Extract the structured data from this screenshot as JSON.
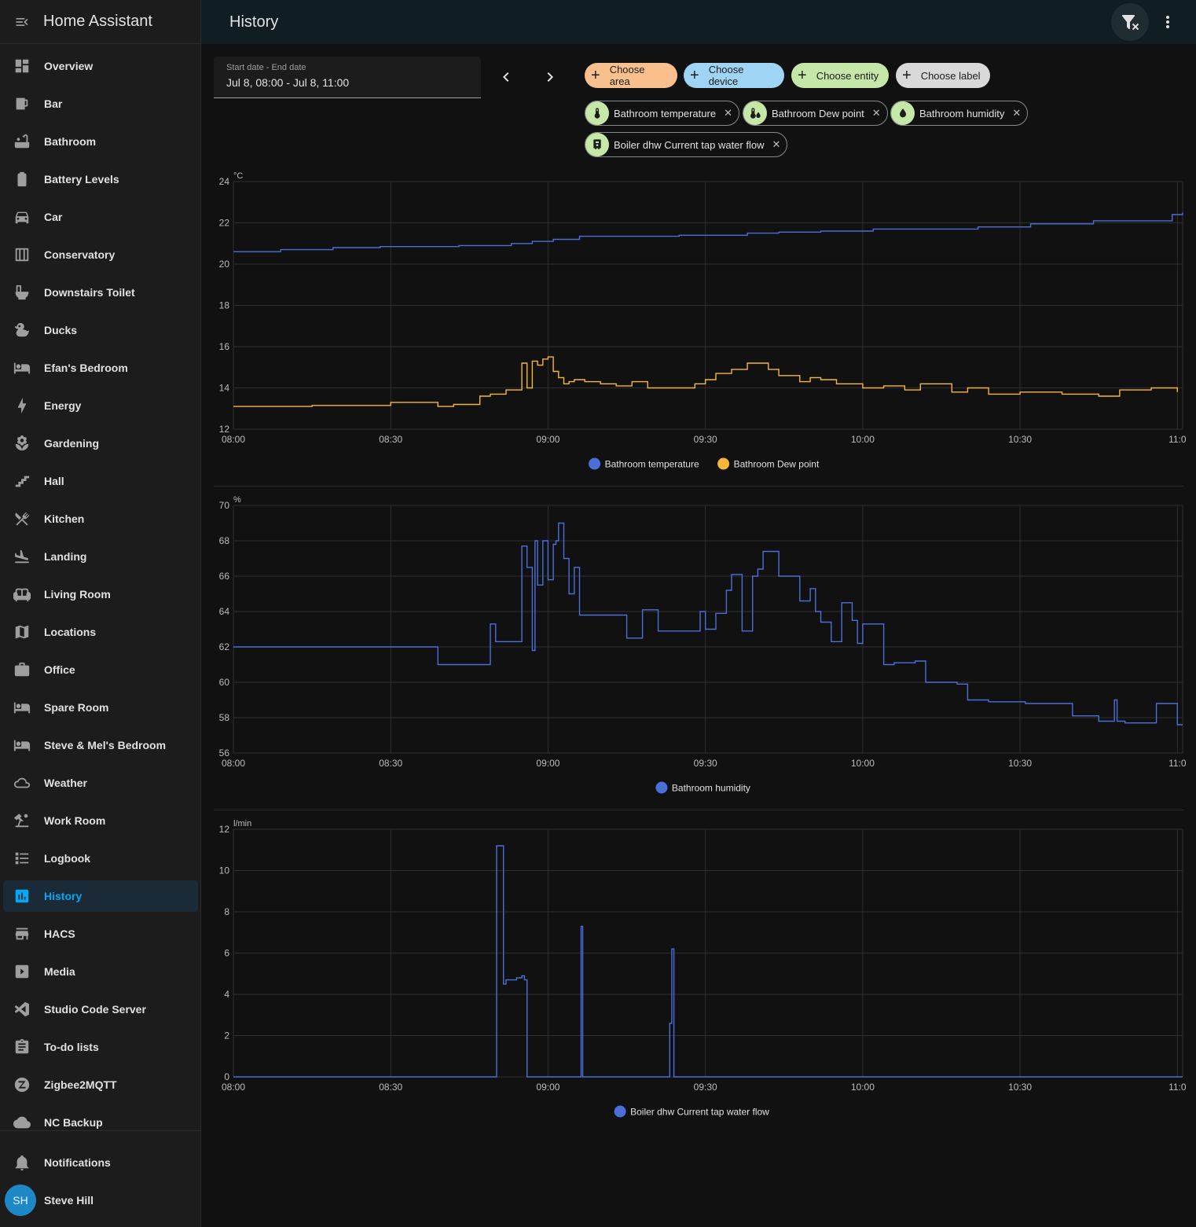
{
  "app": {
    "title": "Home Assistant"
  },
  "sidebar": {
    "items": [
      {
        "label": "Overview",
        "icon": "dashboard-icon"
      },
      {
        "label": "Bar",
        "icon": "glass-mug-icon"
      },
      {
        "label": "Bathroom",
        "icon": "bathtub-icon"
      },
      {
        "label": "Battery Levels",
        "icon": "battery-icon"
      },
      {
        "label": "Car",
        "icon": "car-icon"
      },
      {
        "label": "Conservatory",
        "icon": "greenhouse-icon"
      },
      {
        "label": "Downstairs Toilet",
        "icon": "toilet-icon"
      },
      {
        "label": "Ducks",
        "icon": "duck-icon"
      },
      {
        "label": "Efan's Bedroom",
        "icon": "bed-icon"
      },
      {
        "label": "Energy",
        "icon": "lightning-bolt-icon"
      },
      {
        "label": "Gardening",
        "icon": "flower-icon"
      },
      {
        "label": "Hall",
        "icon": "stairs-icon"
      },
      {
        "label": "Kitchen",
        "icon": "silverware-icon"
      },
      {
        "label": "Landing",
        "icon": "airplane-landing-icon"
      },
      {
        "label": "Living Room",
        "icon": "sofa-icon"
      },
      {
        "label": "Locations",
        "icon": "map-icon"
      },
      {
        "label": "Office",
        "icon": "briefcase-icon"
      },
      {
        "label": "Spare Room",
        "icon": "bed-icon"
      },
      {
        "label": "Steve & Mel's Bedroom",
        "icon": "bed-icon"
      },
      {
        "label": "Weather",
        "icon": "weather-icon"
      },
      {
        "label": "Work Room",
        "icon": "desk-lamp-icon"
      },
      {
        "label": "Logbook",
        "icon": "format-list-icon"
      },
      {
        "label": "History",
        "icon": "chart-box-icon",
        "active": true
      },
      {
        "label": "HACS",
        "icon": "hacs-icon"
      },
      {
        "label": "Media",
        "icon": "play-box-icon"
      },
      {
        "label": "Studio Code Server",
        "icon": "vscode-icon"
      },
      {
        "label": "To-do lists",
        "icon": "clipboard-list-icon"
      },
      {
        "label": "Zigbee2MQTT",
        "icon": "zigbee-icon"
      },
      {
        "label": "NC Backup",
        "icon": "backup-icon"
      }
    ],
    "notifications_label": "Notifications",
    "user": {
      "initials": "SH",
      "name": "Steve Hill"
    }
  },
  "header": {
    "title": "History"
  },
  "date_range": {
    "label": "Start date - End date",
    "value": "Jul 8, 08:00 - Jul 8, 11:00"
  },
  "pickers": [
    {
      "label": "Choose area",
      "color": "#f9c08e"
    },
    {
      "label": "Choose device",
      "color": "#9fd4f5"
    },
    {
      "label": "Choose entity",
      "color": "#c5e8a8"
    },
    {
      "label": "Choose label",
      "color": "#d9d9d9"
    }
  ],
  "chips": [
    {
      "label": "Bathroom temperature",
      "icon": "thermometer-icon"
    },
    {
      "label": "Bathroom Dew point",
      "icon": "thermometer-water-icon"
    },
    {
      "label": "Bathroom humidity",
      "icon": "water-percent-icon"
    },
    {
      "label": "Boiler dhw Current tap water flow",
      "icon": "water-boiler-icon"
    }
  ],
  "colors": {
    "blue": "#4a6fd8",
    "orange": "#f5b73b",
    "accent": "#03a9f4"
  },
  "chart_data": [
    {
      "type": "line",
      "ylabel": "°C",
      "ylim": [
        12,
        24
      ],
      "yticks": [
        12,
        14,
        16,
        18,
        20,
        22,
        24
      ],
      "xticks": [
        "08:00",
        "08:30",
        "09:00",
        "09:30",
        "10:00",
        "10:30",
        "11:0"
      ],
      "xlim": [
        0,
        181
      ],
      "grid": true,
      "legend_position": "bottom",
      "series": [
        {
          "name": "Bathroom temperature",
          "color": "#4a6fd8",
          "x": [
            0,
            9,
            19,
            28,
            43,
            53,
            57,
            61,
            66,
            85,
            98,
            104,
            112,
            122,
            142,
            152,
            164,
            179,
            181
          ],
          "y": [
            20.6,
            20.7,
            20.8,
            20.85,
            20.9,
            21.0,
            21.1,
            21.2,
            21.35,
            21.4,
            21.5,
            21.55,
            21.6,
            21.7,
            21.8,
            21.95,
            22.1,
            22.4,
            22.5
          ]
        },
        {
          "name": "Bathroom Dew point",
          "color": "#f5b73b",
          "x": [
            0,
            15,
            30,
            39,
            42,
            47,
            49,
            52,
            55,
            56,
            57,
            58,
            59,
            60,
            61,
            62,
            63,
            64,
            65,
            67,
            70,
            73,
            76,
            79,
            88,
            90,
            92,
            95,
            98,
            102,
            104,
            108,
            110,
            112,
            115,
            120,
            124,
            128,
            131,
            137,
            140,
            144,
            150,
            158,
            165,
            169,
            175,
            180
          ],
          "y": [
            13.1,
            13.15,
            13.3,
            13.1,
            13.2,
            13.6,
            13.7,
            13.9,
            15.2,
            14.0,
            15.3,
            15.1,
            15.4,
            15.5,
            14.8,
            14.5,
            14.2,
            14.3,
            14.4,
            14.3,
            14.2,
            14.1,
            14.3,
            14.0,
            14.2,
            14.4,
            14.7,
            14.9,
            15.2,
            14.9,
            14.6,
            14.3,
            14.5,
            14.4,
            14.2,
            14.0,
            14.1,
            13.9,
            14.2,
            13.8,
            14.0,
            13.7,
            13.8,
            13.7,
            13.6,
            13.9,
            14.0,
            13.8
          ]
        }
      ]
    },
    {
      "type": "line",
      "ylabel": "%",
      "ylim": [
        56,
        70
      ],
      "yticks": [
        56,
        58,
        60,
        62,
        64,
        66,
        68,
        70
      ],
      "xticks": [
        "08:00",
        "08:30",
        "09:00",
        "09:30",
        "10:00",
        "10:30",
        "11:0"
      ],
      "xlim": [
        0,
        181
      ],
      "grid": true,
      "legend_position": "bottom",
      "series": [
        {
          "name": "Bathroom humidity",
          "color": "#4a6fd8",
          "x": [
            0,
            39,
            49,
            50,
            55,
            56,
            57,
            57.5,
            58,
            59,
            60,
            61,
            61.5,
            62,
            63,
            64,
            65,
            66,
            70,
            75,
            78,
            81,
            88,
            89,
            90,
            92,
            94,
            95,
            97,
            99,
            100,
            101,
            104,
            108,
            110,
            111,
            112,
            114,
            116,
            118,
            119,
            120,
            124,
            126,
            130,
            132,
            134,
            137,
            138,
            140,
            144,
            151,
            160,
            165,
            168,
            168.5,
            170,
            176,
            180,
            181
          ],
          "y": [
            62.0,
            61.0,
            63.3,
            62.3,
            67.7,
            66.5,
            61.8,
            68.0,
            65.5,
            68.0,
            65.8,
            67.8,
            68.0,
            69.0,
            67.0,
            65.0,
            66.5,
            63.8,
            63.8,
            62.5,
            64.1,
            62.9,
            62.9,
            64.0,
            63.0,
            63.9,
            65.2,
            66.1,
            62.9,
            66.0,
            66.4,
            67.4,
            66.0,
            64.6,
            65.3,
            64.0,
            63.4,
            62.3,
            64.5,
            63.5,
            62.2,
            63.3,
            61.0,
            61.1,
            61.2,
            60.0,
            60.0,
            60.0,
            59.9,
            59.0,
            58.9,
            58.8,
            58.1,
            57.8,
            59.0,
            57.8,
            57.7,
            58.8,
            57.6,
            57.6
          ]
        }
      ]
    },
    {
      "type": "line",
      "ylabel": "l/min",
      "ylim": [
        0,
        12
      ],
      "yticks": [
        0,
        2,
        4,
        6,
        8,
        10,
        12
      ],
      "xticks": [
        "08:00",
        "08:30",
        "09:00",
        "09:30",
        "10:00",
        "10:30",
        "11:0"
      ],
      "xlim": [
        0,
        181
      ],
      "grid": true,
      "legend_position": "bottom",
      "series": [
        {
          "name": "Boiler dhw Current tap water flow",
          "color": "#4a6fd8",
          "x": [
            0,
            50,
            50.2,
            51.5,
            52,
            54,
            55,
            55.5,
            56,
            66,
            66.3,
            66.6,
            83,
            83.2,
            83.6,
            84,
            181
          ],
          "y": [
            0,
            0,
            11.2,
            4.5,
            4.7,
            4.8,
            4.9,
            4.7,
            0,
            0,
            7.3,
            0,
            0,
            2.6,
            6.2,
            0,
            0
          ]
        }
      ]
    }
  ]
}
